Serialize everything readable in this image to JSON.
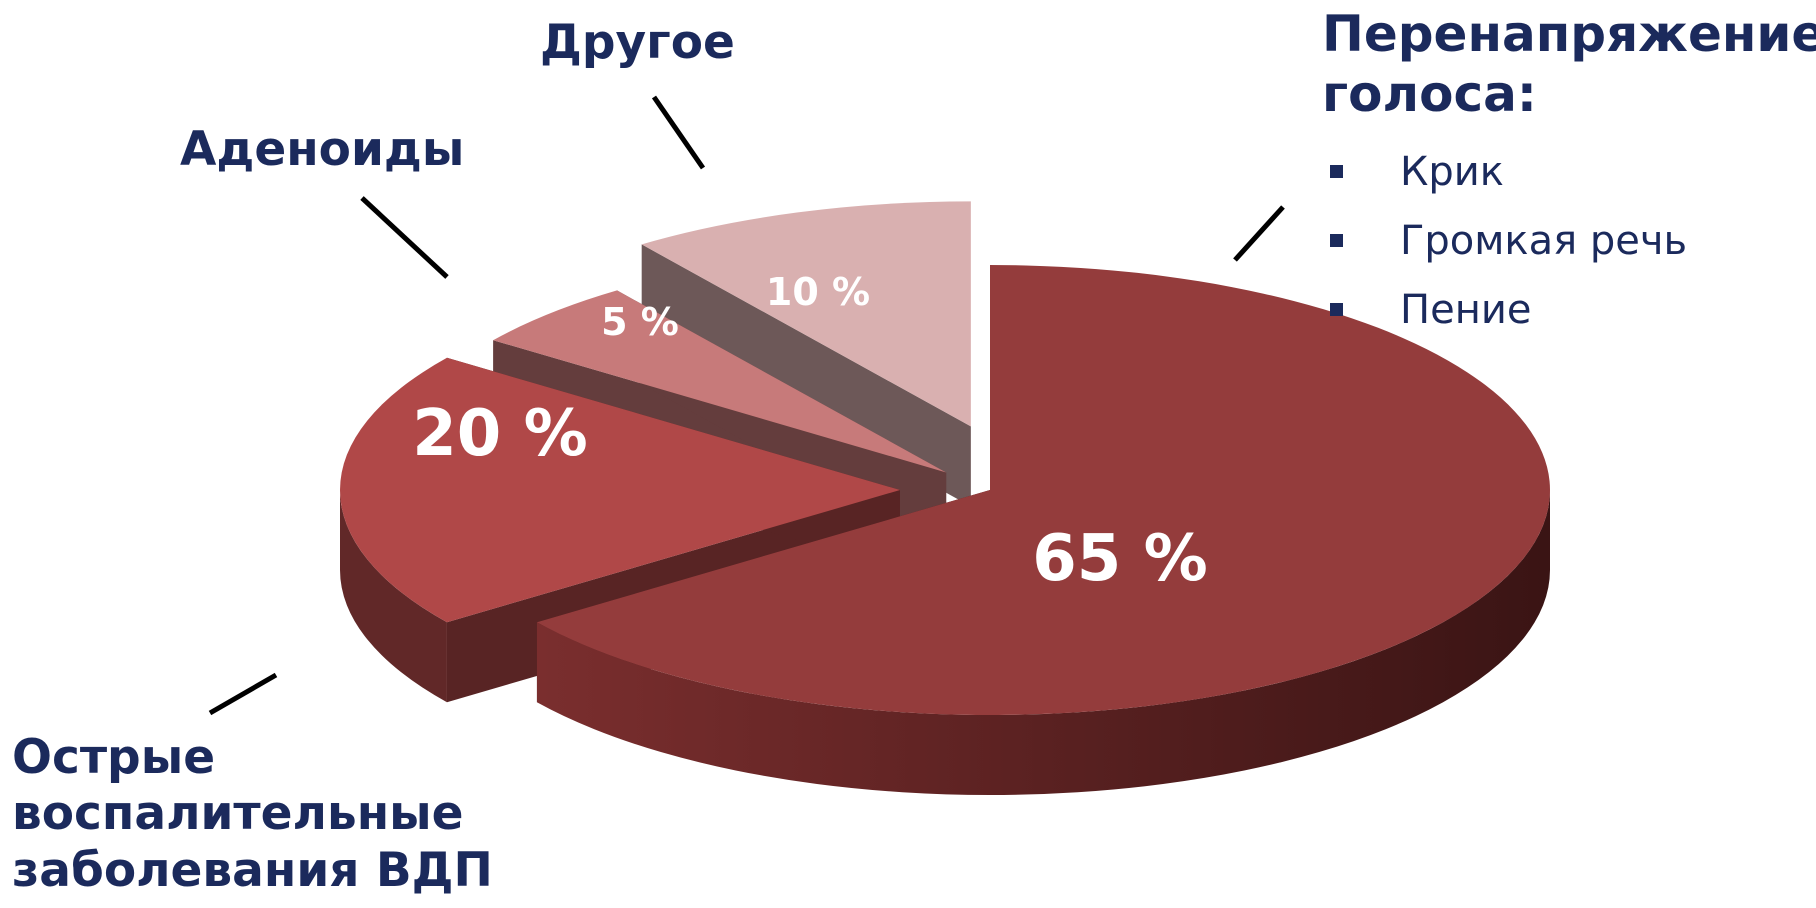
{
  "chart_data": {
    "type": "pie",
    "categories": [
      "Перенапряжение голоса:",
      "Острые воспалительные заболевания ВДП",
      "Аденоиды",
      "Другое"
    ],
    "values": [
      65,
      20,
      5,
      10
    ],
    "value_labels": [
      "65 %",
      "20 %",
      "5 %",
      "10 %"
    ],
    "colors": [
      "#943c3c",
      "#b04848",
      "#c77a7a",
      "#d9b0b0"
    ],
    "sub_items": [
      "Крик",
      "Громкая речь",
      "Пение"
    ],
    "text_color": "#1b2a5c"
  }
}
